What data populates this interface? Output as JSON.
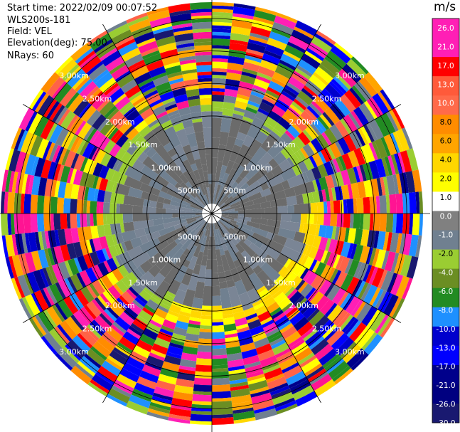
{
  "header": {
    "start_time": "Start time: 2022/02/09 00:07:52",
    "instrument": "WLS200s-181",
    "field": "Field: VEL",
    "elevation": "Elevation(deg): 75.00",
    "nrays": "NRays: 60"
  },
  "colorbar": {
    "unit": "m/s",
    "labels": [
      "26.0",
      "21.0",
      "17.0",
      "13.0",
      "10.0",
      "8.0",
      "6.0",
      "4.0",
      "2.0",
      "1.0",
      "0.0",
      "-1.0",
      "-2.0",
      "-4.0",
      "-6.0",
      "-8.0",
      "-10.0",
      "-13.0",
      "-17.0",
      "-21.0",
      "-26.0",
      "-30.0"
    ],
    "colors": [
      "#ff1fb5",
      "#ff1fb5",
      "#ff0000",
      "#ff5a3a",
      "#ff6a4a",
      "#ff8c00",
      "#ffa500",
      "#ffd700",
      "#ffff00",
      "#ffffff",
      "#808080",
      "#708090",
      "#9acd32",
      "#6b8e23",
      "#228b22",
      "#1e90ff",
      "#0000cd",
      "#0000ff",
      "#00008b",
      "#000080",
      "#191970"
    ]
  },
  "chart_data": {
    "type": "heatmap",
    "projection": "polar PPI",
    "field": "VEL",
    "unit": "m/s",
    "n_rays": 60,
    "range_rings": [
      "500m",
      "1.00km",
      "1.50km",
      "2.00km",
      "2.50km",
      "3.00km"
    ],
    "range_rings_km": [
      0.5,
      1.0,
      1.5,
      2.0,
      2.5,
      3.0
    ],
    "color_range": [
      -30,
      26
    ],
    "description_of_field": "near-zero velocities (grey) inside ~1.5 km; ring of -1 to -2 m/s (light slate / yellow-green) near 1.5 km; highly variable velocities beyond"
  }
}
